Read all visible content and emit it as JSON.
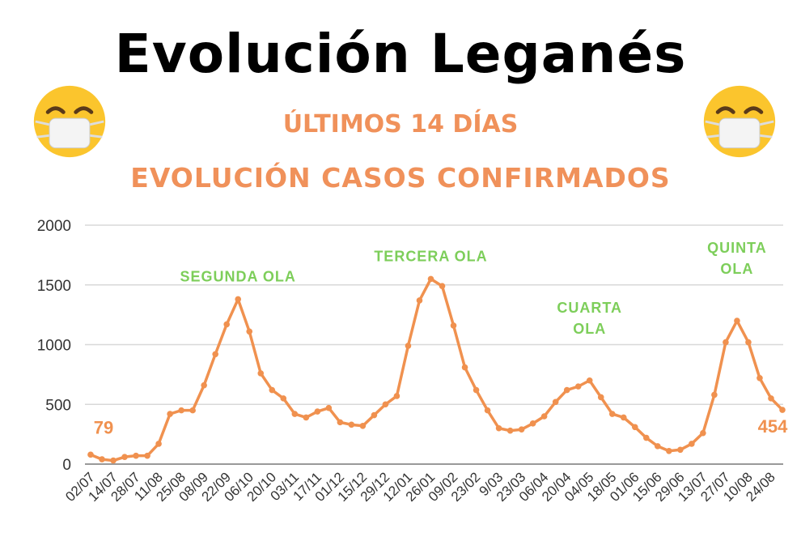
{
  "title": "Evolución Leganés",
  "subtitle1": "ÚLTIMOS 14 DÍAS",
  "subtitle2": "EVOLUCIÓN CASOS CONFIRMADOS",
  "icons": {
    "left": "face-with-medical-mask-icon",
    "right": "face-with-medical-mask-icon"
  },
  "colors": {
    "line": "#f0914f",
    "annotation": "#7dce5a",
    "subtitle": "#f0915a"
  },
  "chart_data": {
    "type": "line",
    "title": "EVOLUCIÓN CASOS CONFIRMADOS",
    "xlabel": "",
    "ylabel": "",
    "ylim": [
      0,
      2000
    ],
    "yticks": [
      "0",
      "500",
      "1000",
      "1500",
      "2000"
    ],
    "xtick_labels": [
      "02/07",
      "14/07",
      "28/07",
      "11/08",
      "25/08",
      "08/09",
      "22/09",
      "06/10",
      "20/10",
      "03/11",
      "17/11",
      "01/12",
      "15/12",
      "29/12",
      "12/01",
      "26/01",
      "09/02",
      "23/02",
      "9/03",
      "23/03",
      "06/04",
      "20/04",
      "04/05",
      "18/05",
      "01/06",
      "15/06",
      "29/06",
      "13/07",
      "27/07",
      "10/08",
      "24/08"
    ],
    "grid": true,
    "values": [
      79,
      40,
      30,
      60,
      70,
      70,
      170,
      420,
      450,
      450,
      660,
      920,
      1170,
      1380,
      1110,
      760,
      620,
      550,
      420,
      390,
      440,
      470,
      350,
      330,
      320,
      410,
      500,
      570,
      990,
      1370,
      1550,
      1490,
      1160,
      810,
      620,
      450,
      300,
      280,
      290,
      340,
      400,
      520,
      620,
      650,
      700,
      560,
      420,
      390,
      310,
      220,
      150,
      110,
      120,
      170,
      260,
      580,
      1020,
      1200,
      1020,
      720,
      550,
      454
    ],
    "annotations": [
      {
        "text": "79",
        "point": 0
      },
      {
        "text": "454",
        "point": 61
      },
      {
        "text": "SEGUNDA OLA",
        "point": 13
      },
      {
        "text": "TERCERA OLA",
        "point": 30
      },
      {
        "text": "CUARTA",
        "text2": "OLA",
        "point": 44
      },
      {
        "text": "QUINTA",
        "text2": "OLA",
        "point": 57
      }
    ]
  }
}
